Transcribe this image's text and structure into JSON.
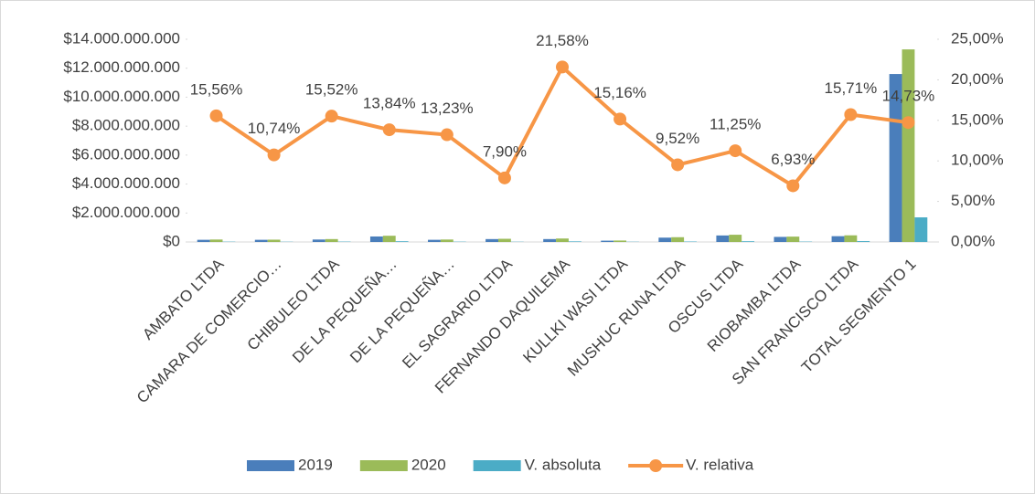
{
  "chart_data": {
    "type": "bar",
    "categories": [
      "AMBATO LTDA",
      "CAMARA DE COMERCIO…",
      "CHIBULEO LTDA",
      "DE LA PEQUEÑA…",
      "DE LA PEQUEÑA…",
      "EL SAGRARIO LTDA",
      "FERNANDO DAQUILEMA",
      "KULLKI WASI LTDA",
      "MUSHUC RUNA LTDA",
      "OSCUS LTDA",
      "RIOBAMBA LTDA",
      "SAN FRANCISCO LTDA",
      "TOTAL SEGMENTO 1"
    ],
    "series": [
      {
        "name": "2019",
        "color": "#4a7ebb",
        "values": [
          150000000,
          150000000,
          170000000,
          380000000,
          150000000,
          200000000,
          200000000,
          90000000,
          300000000,
          450000000,
          350000000,
          400000000,
          11600000000
        ]
      },
      {
        "name": "2020",
        "color": "#9bbb59",
        "values": [
          170000000,
          160000000,
          200000000,
          430000000,
          170000000,
          220000000,
          240000000,
          100000000,
          330000000,
          500000000,
          370000000,
          460000000,
          13300000000
        ]
      },
      {
        "name": "V. absoluta",
        "color": "#4bacc6",
        "values": [
          20000000,
          15000000,
          25000000,
          50000000,
          20000000,
          15000000,
          40000000,
          15000000,
          30000000,
          50000000,
          25000000,
          60000000,
          1700000000
        ]
      },
      {
        "name": "V. relativa",
        "color": "#f79646",
        "type": "line",
        "axis": "y2",
        "values": [
          15.56,
          10.74,
          15.52,
          13.84,
          13.23,
          7.9,
          21.58,
          15.16,
          9.52,
          11.25,
          6.93,
          15.71,
          14.73
        ],
        "value_labels": [
          "15,56%",
          "10,74%",
          "15,52%",
          "13,84%",
          "13,23%",
          "7,90%",
          "21,58%",
          "15,16%",
          "9,52%",
          "11,25%",
          "6,93%",
          "15,71%",
          "14,73%"
        ]
      }
    ],
    "ylim": [
      0,
      14000000000
    ],
    "yticks": [
      {
        "value": 0,
        "label": "$0"
      },
      {
        "value": 2000000000,
        "label": "$2.000.000.000"
      },
      {
        "value": 4000000000,
        "label": "$4.000.000.000"
      },
      {
        "value": 6000000000,
        "label": "$6.000.000.000"
      },
      {
        "value": 8000000000,
        "label": "$8.000.000.000"
      },
      {
        "value": 10000000000,
        "label": "$10.000.000.000"
      },
      {
        "value": 12000000000,
        "label": "$12.000.000.000"
      },
      {
        "value": 14000000000,
        "label": "$14.000.000.000"
      }
    ],
    "y2lim": [
      0,
      25
    ],
    "y2ticks": [
      {
        "value": 0,
        "label": "0,00%"
      },
      {
        "value": 5,
        "label": "5,00%"
      },
      {
        "value": 10,
        "label": "10,00%"
      },
      {
        "value": 15,
        "label": "15,00%"
      },
      {
        "value": 20,
        "label": "20,00%"
      },
      {
        "value": 25,
        "label": "25,00%"
      }
    ],
    "legend": "bottom"
  }
}
